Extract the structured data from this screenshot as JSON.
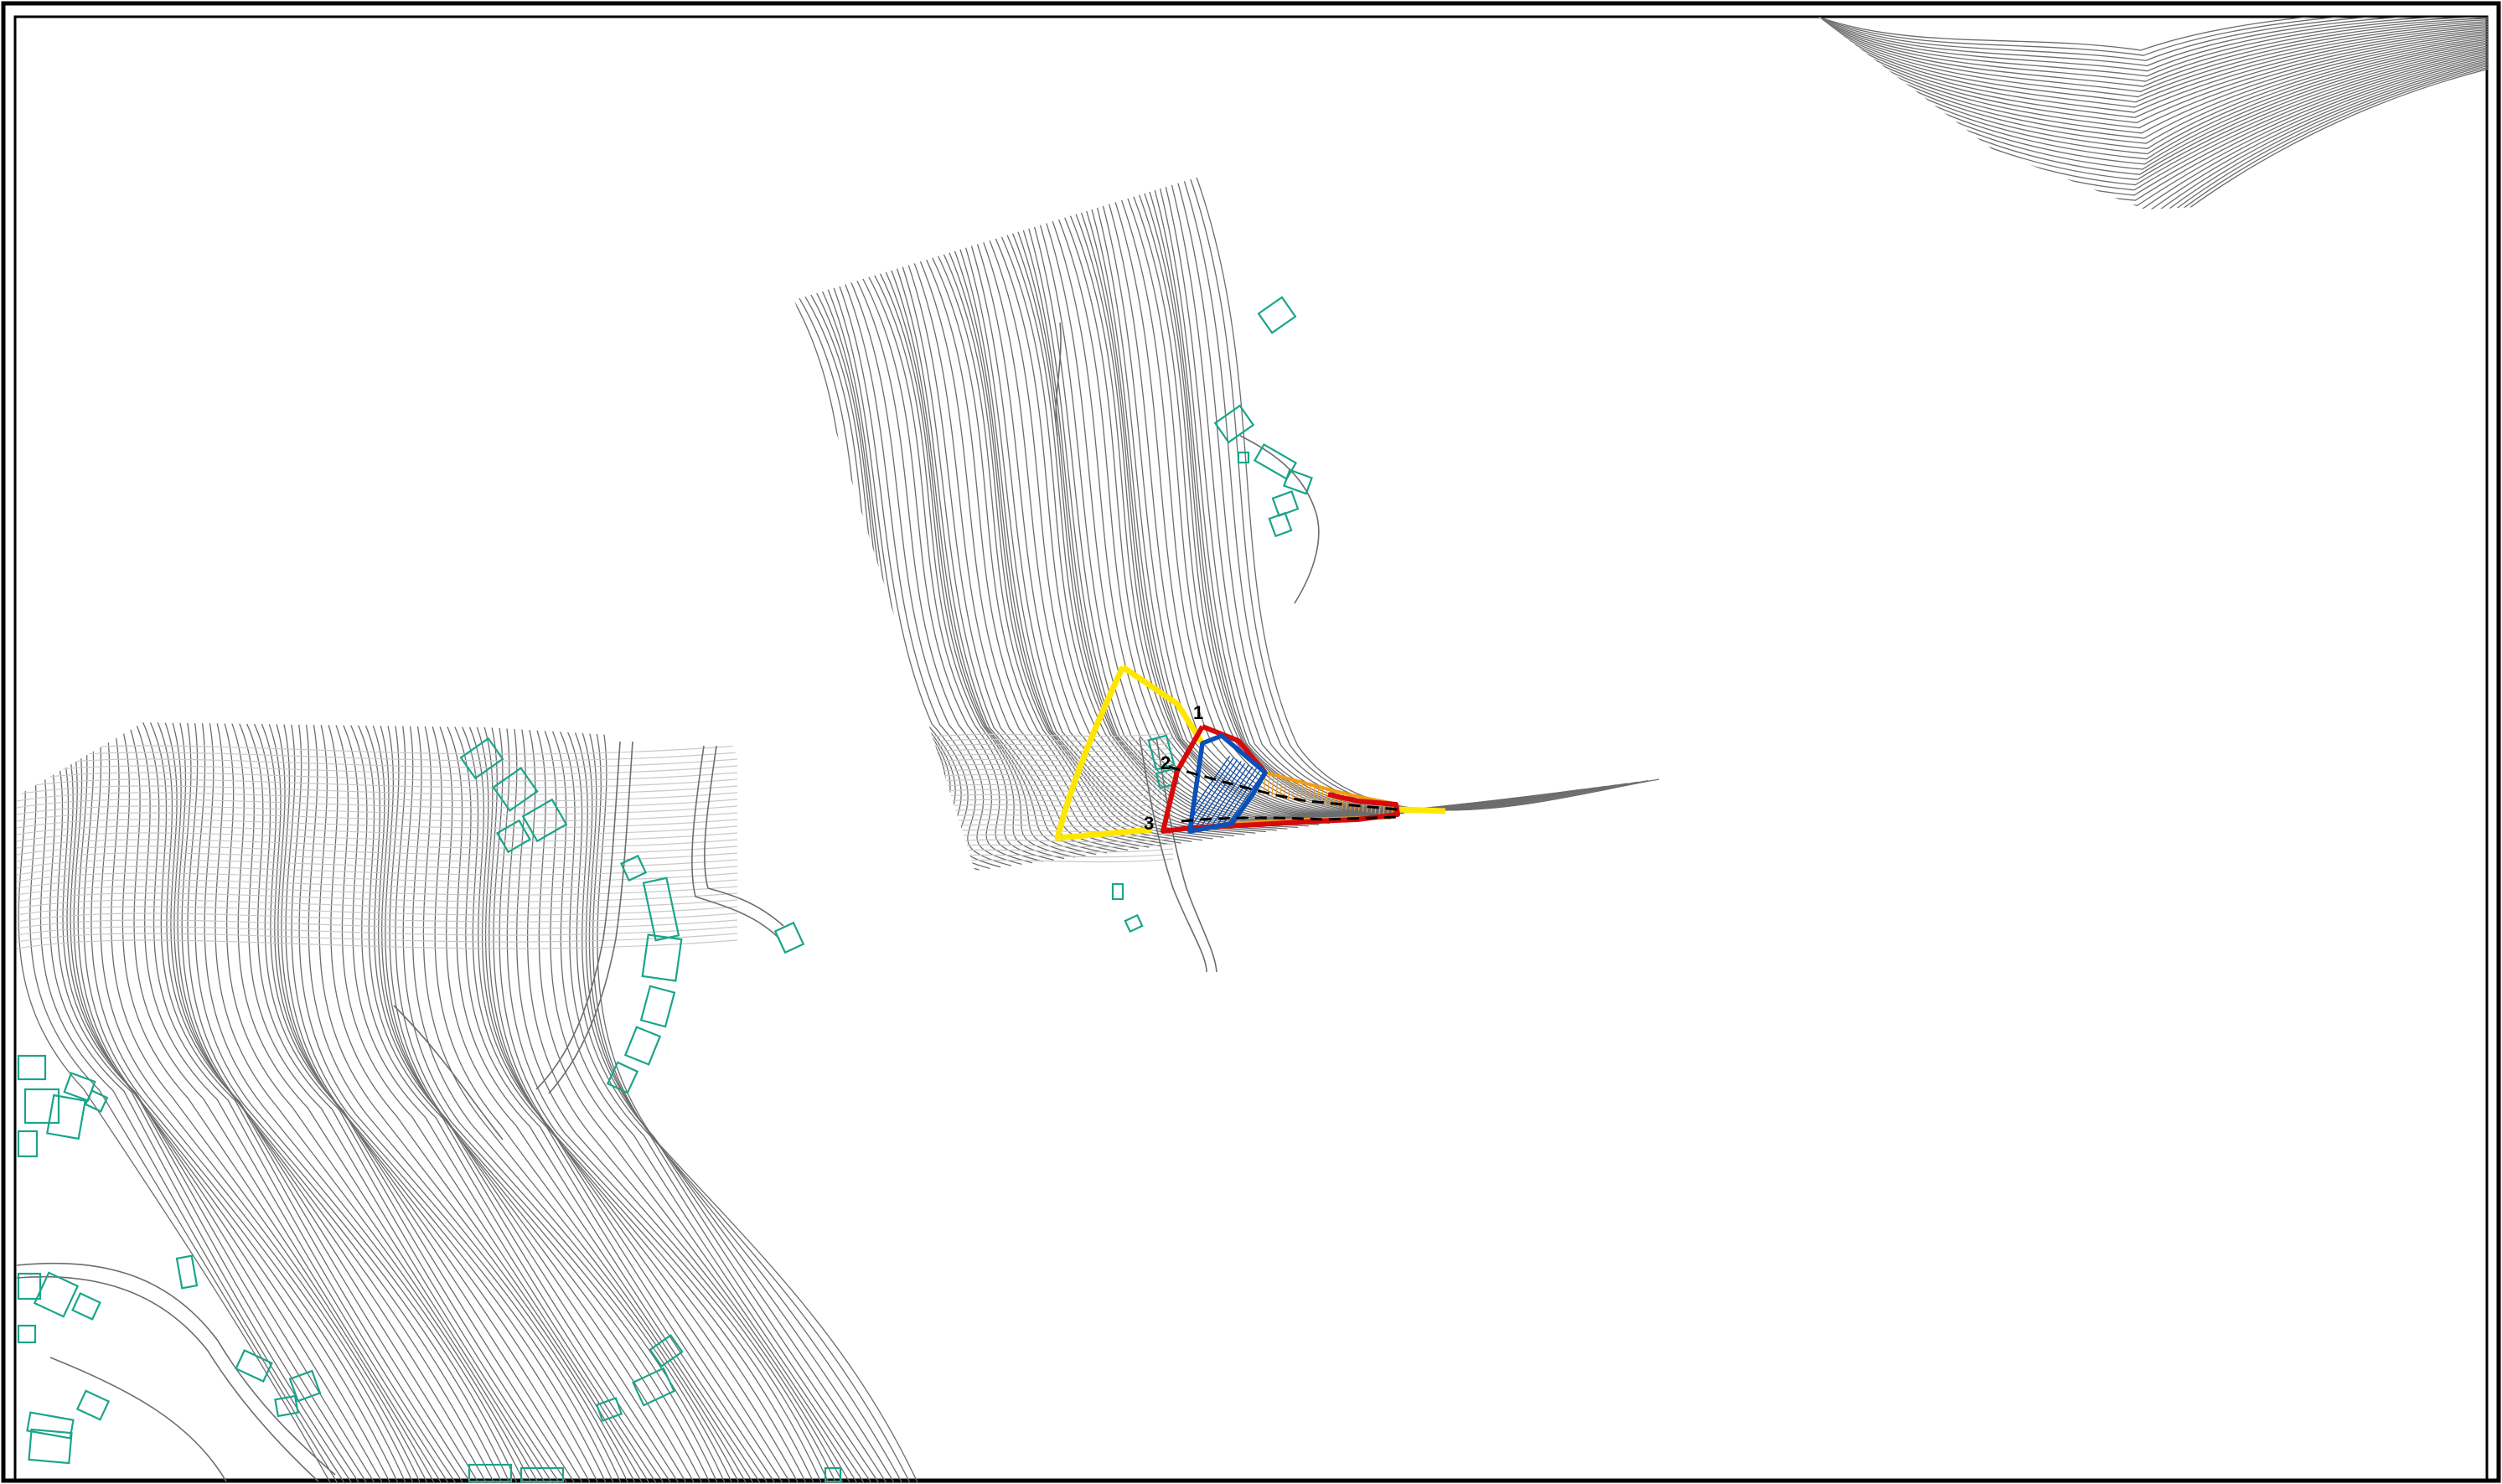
{
  "map": {
    "kind": "topographic site plan",
    "colors": {
      "background": "#ffffff",
      "contour": "#6d6d6d",
      "building": "#1aa58a",
      "boundary_yellow": "#ffe600",
      "boundary_red": "#d60a0a",
      "boundary_blue": "#0b4fb8",
      "boundary_orange": "#f39c12",
      "frame": "#000000"
    },
    "point_labels": [
      "1",
      "2",
      "3"
    ]
  }
}
